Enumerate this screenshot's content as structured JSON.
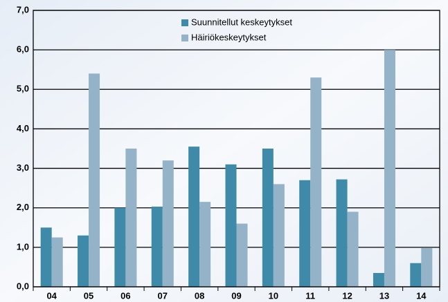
{
  "chart_data": {
    "type": "bar",
    "categories": [
      "04",
      "05",
      "06",
      "07",
      "08",
      "09",
      "10",
      "11",
      "12",
      "13",
      "14"
    ],
    "series": [
      {
        "name": "Suunnitellut keskeytykset",
        "color": "#3f8aa8",
        "values": [
          1.5,
          1.3,
          2.0,
          2.03,
          3.55,
          3.1,
          3.5,
          2.7,
          2.72,
          0.35,
          0.6
        ]
      },
      {
        "name": "Häiriökeskeytykset",
        "color": "#94b3c9",
        "values": [
          1.25,
          5.4,
          3.5,
          3.2,
          2.15,
          1.6,
          2.6,
          5.3,
          1.9,
          6.0,
          0.98
        ]
      }
    ],
    "ylim": [
      0,
      7
    ],
    "yticks": [
      {
        "value": 0,
        "label": "0,0"
      },
      {
        "value": 1,
        "label": "1,0"
      },
      {
        "value": 2,
        "label": "2,0"
      },
      {
        "value": 3,
        "label": "3,0"
      },
      {
        "value": 4,
        "label": "4,0"
      },
      {
        "value": 5,
        "label": "5,0"
      },
      {
        "value": 6,
        "label": "6,0"
      },
      {
        "value": 7,
        "label": "7,0"
      }
    ],
    "grid": true
  }
}
